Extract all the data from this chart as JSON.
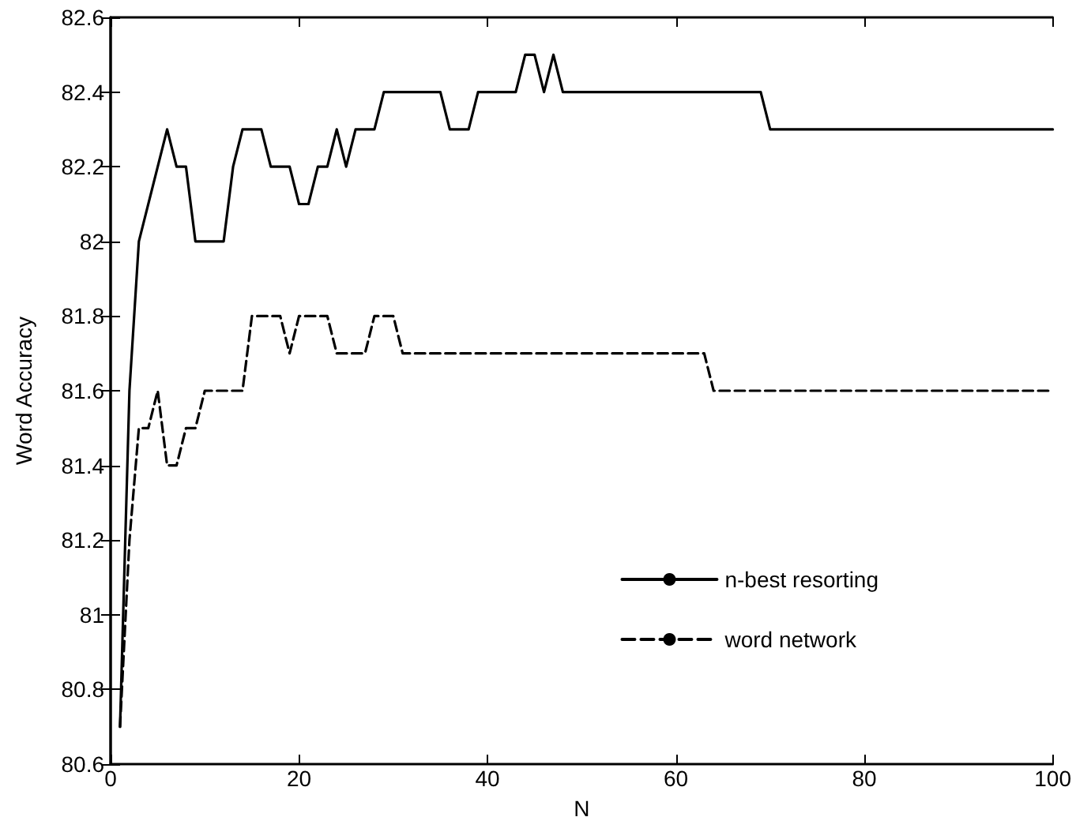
{
  "chart_data": {
    "type": "line",
    "xlabel": "N",
    "ylabel": "Word Accuracy",
    "xlim": [
      0,
      100
    ],
    "xticks": [
      0,
      20,
      40,
      60,
      80,
      100
    ],
    "ylim": [
      80.6,
      82.6
    ],
    "yticks": [
      80.6,
      80.8,
      81,
      81.2,
      81.4,
      81.6,
      81.8,
      82,
      82.2,
      82.4,
      82.6
    ],
    "grid": false,
    "legend": "bottom right",
    "marker": "none",
    "series": [
      {
        "name": "n-best resorting",
        "color": "#000000",
        "line_style": "solid",
        "x": [
          1,
          2,
          3,
          6,
          7,
          8,
          9,
          12,
          13,
          14,
          16,
          17,
          19,
          20,
          21,
          22,
          23,
          24,
          25,
          26,
          28,
          29,
          35,
          36,
          38,
          39,
          43,
          44,
          45,
          46,
          47,
          48,
          69,
          70,
          100
        ],
        "values": [
          80.7,
          81.6,
          82.0,
          82.3,
          82.2,
          82.2,
          82.0,
          82.0,
          82.2,
          82.3,
          82.3,
          82.2,
          82.2,
          82.1,
          82.1,
          82.2,
          82.2,
          82.3,
          82.2,
          82.3,
          82.3,
          82.4,
          82.4,
          82.3,
          82.3,
          82.4,
          82.4,
          82.5,
          82.5,
          82.4,
          82.5,
          82.4,
          82.4,
          82.3,
          82.3
        ]
      },
      {
        "name": "word network",
        "color": "#000000",
        "line_style": "dashed",
        "x": [
          1,
          2,
          3,
          4,
          5,
          6,
          7,
          8,
          9,
          10,
          14,
          15,
          18,
          19,
          20,
          23,
          24,
          27,
          28,
          30,
          31,
          63,
          64,
          100
        ],
        "values": [
          80.7,
          81.2,
          81.5,
          81.5,
          81.6,
          81.4,
          81.4,
          81.5,
          81.5,
          81.6,
          81.6,
          81.8,
          81.8,
          81.7,
          81.8,
          81.8,
          81.7,
          81.7,
          81.8,
          81.8,
          81.7,
          81.7,
          81.6,
          81.6
        ]
      }
    ]
  }
}
